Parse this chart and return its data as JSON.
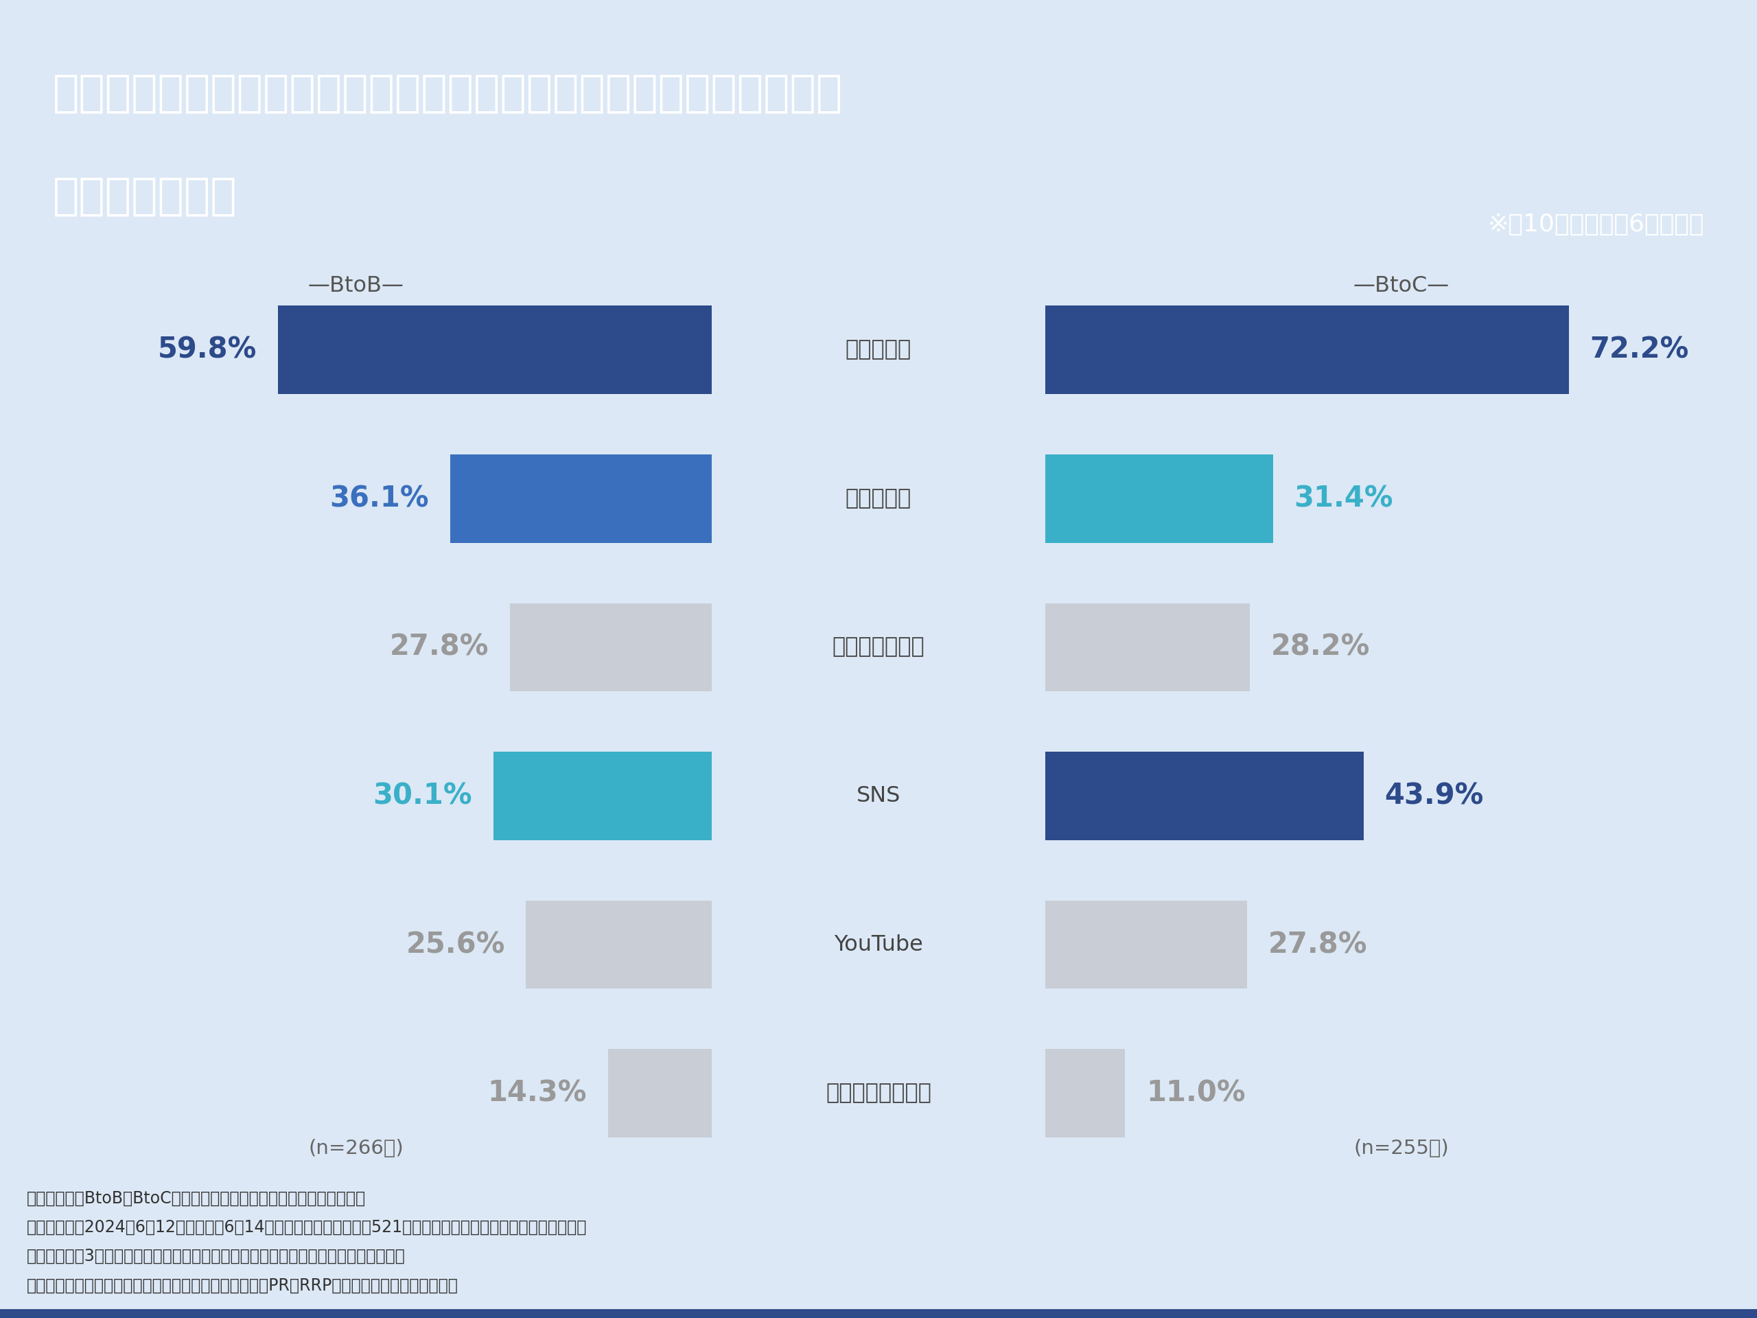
{
  "title_line1": "コンテンツマーケティングに使用しているチャネルはどれですか？",
  "title_line2": "（複数回答可）",
  "subtitle_note": "※全10項目中上位6項目抜粋",
  "header_bg_color": "#2d4a8a",
  "chart_bg_color": "#dce8f5",
  "categories": [
    "自社サイト",
    "自社ブログ",
    "プレスリリース",
    "SNS",
    "YouTube",
    "ホワイトペーパー"
  ],
  "btob_values": [
    59.8,
    36.1,
    27.8,
    30.1,
    25.6,
    14.3
  ],
  "btoc_values": [
    72.2,
    31.4,
    28.2,
    43.9,
    27.8,
    11.0
  ],
  "btob_colors": [
    "#2d4a8a",
    "#3a6fbd",
    "#c8cdd6",
    "#3ab0c8",
    "#c8cdd6",
    "#c8cdd6"
  ],
  "btoc_colors": [
    "#2d4a8a",
    "#3ab0c8",
    "#c8cdd6",
    "#2d4a8a",
    "#c8cdd6",
    "#c8cdd6"
  ],
  "btob_label_color": [
    "#2d4a8a",
    "#3a6fbd",
    "#999999",
    "#3ab0c8",
    "#999999",
    "#999999"
  ],
  "btoc_label_color": [
    "#2d4a8a",
    "#3ab0c8",
    "#999999",
    "#2d4a8a",
    "#999999",
    "#999999"
  ],
  "btob_n": "(n=266人)",
  "btoc_n": "(n=255人)",
  "footer_lines": [
    "《調査概要：BtoB／BtoC企業コンテンツマーケティングに関する調査",
    "・調査期間：2024年6月12日（水）～6月14日（金）　・調査人数：521人　・モニター提供元：ゼネラルリサーチ",
    "・調査対象：3年以上コンテンツマーケティングを実施しているマーケティング担当者",
    "・調査方法：リンクアンドパートナーズが提供する調査PR「RRP」によるインターネット調査"
  ]
}
